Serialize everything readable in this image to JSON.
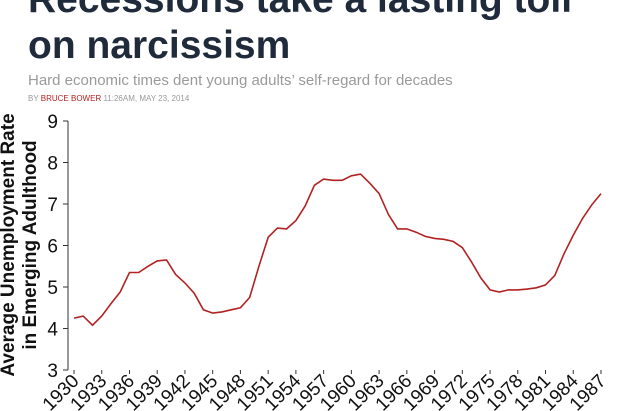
{
  "header": {
    "title_lines": [
      "Recessions take a lasting toll",
      "on narcissism"
    ],
    "subtitle": "Hard economic times dent young adults’ self-regard for decades",
    "byline_prefix": "BY",
    "author": "BRUCE BOWER",
    "date": "11:26AM, MAY 23, 2014"
  },
  "chart_data": {
    "type": "line",
    "ylabel": [
      "Average Unemployment Rate",
      "in Emerging Adulthood"
    ],
    "x": [
      1930,
      1931,
      1932,
      1933,
      1934,
      1935,
      1936,
      1937,
      1938,
      1939,
      1940,
      1941,
      1942,
      1943,
      1944,
      1945,
      1946,
      1947,
      1948,
      1949,
      1950,
      1951,
      1952,
      1953,
      1954,
      1955,
      1956,
      1957,
      1958,
      1959,
      1960,
      1961,
      1962,
      1963,
      1964,
      1965,
      1966,
      1967,
      1968,
      1969,
      1970,
      1971,
      1972,
      1973,
      1974,
      1975,
      1976,
      1977,
      1978,
      1979,
      1980,
      1981,
      1982,
      1983,
      1984,
      1985,
      1986,
      1987
    ],
    "y": [
      4.25,
      4.3,
      4.08,
      4.3,
      4.6,
      4.88,
      5.35,
      5.35,
      5.5,
      5.63,
      5.65,
      5.3,
      5.1,
      4.85,
      4.45,
      4.37,
      4.4,
      4.45,
      4.5,
      4.75,
      5.5,
      6.2,
      6.42,
      6.4,
      6.6,
      6.95,
      7.45,
      7.6,
      7.57,
      7.57,
      7.68,
      7.72,
      7.5,
      7.25,
      6.75,
      6.4,
      6.4,
      6.32,
      6.22,
      6.17,
      6.15,
      6.1,
      5.95,
      5.6,
      5.22,
      4.93,
      4.88,
      4.93,
      4.93,
      4.95,
      4.98,
      5.05,
      5.28,
      5.8,
      6.25,
      6.65,
      6.98,
      7.25
    ],
    "color": "#b22222",
    "xlim": [
      1930,
      1987
    ],
    "xticks": [
      1930,
      1933,
      1936,
      1939,
      1942,
      1945,
      1948,
      1951,
      1954,
      1957,
      1960,
      1963,
      1966,
      1969,
      1972,
      1975,
      1978,
      1981,
      1984,
      1987
    ],
    "ylim": [
      3,
      9
    ],
    "yticks": [
      3,
      4,
      5,
      6,
      7,
      8,
      9
    ]
  }
}
